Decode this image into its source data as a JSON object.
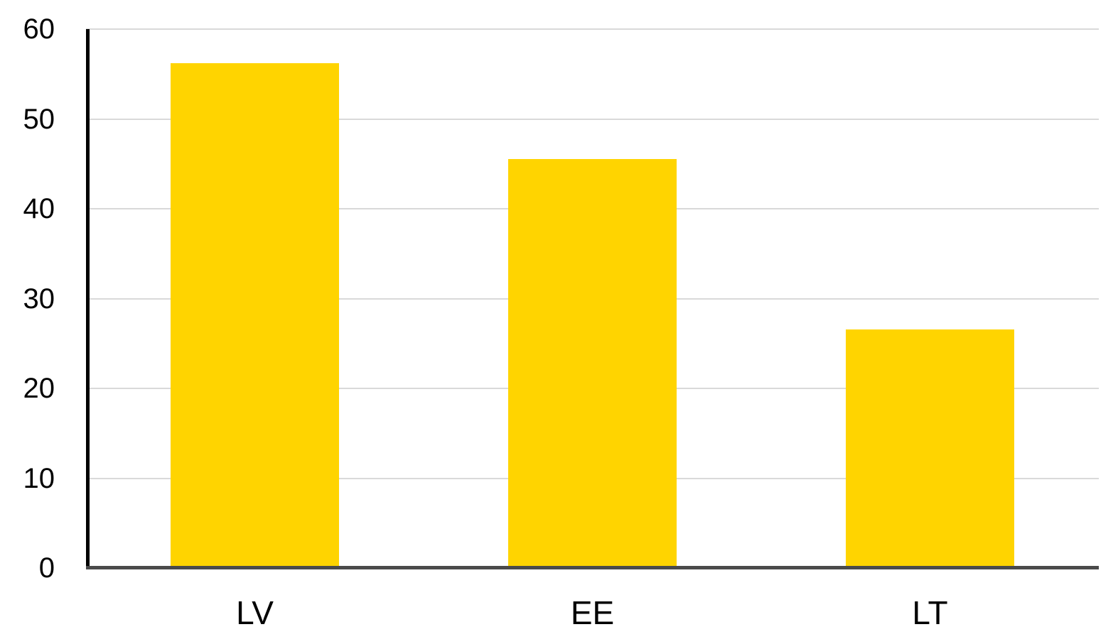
{
  "chart_data": {
    "type": "bar",
    "title": "",
    "xlabel": "",
    "ylabel": "",
    "categories": [
      "LV",
      "EE",
      "LT"
    ],
    "values": [
      56.2,
      45.5,
      26.6
    ],
    "ylim": [
      0,
      60
    ],
    "yticks": [
      0,
      10,
      20,
      30,
      40,
      50,
      60
    ],
    "grid": true,
    "legend": "none",
    "bar_color": "#FFD400",
    "gridline_color": "#D9D9D9",
    "y_axis_line_color": "#000000",
    "baseline_color": "#4A4A4A",
    "tick_label_color": "#000000",
    "background_color": "#FFFFFF"
  }
}
